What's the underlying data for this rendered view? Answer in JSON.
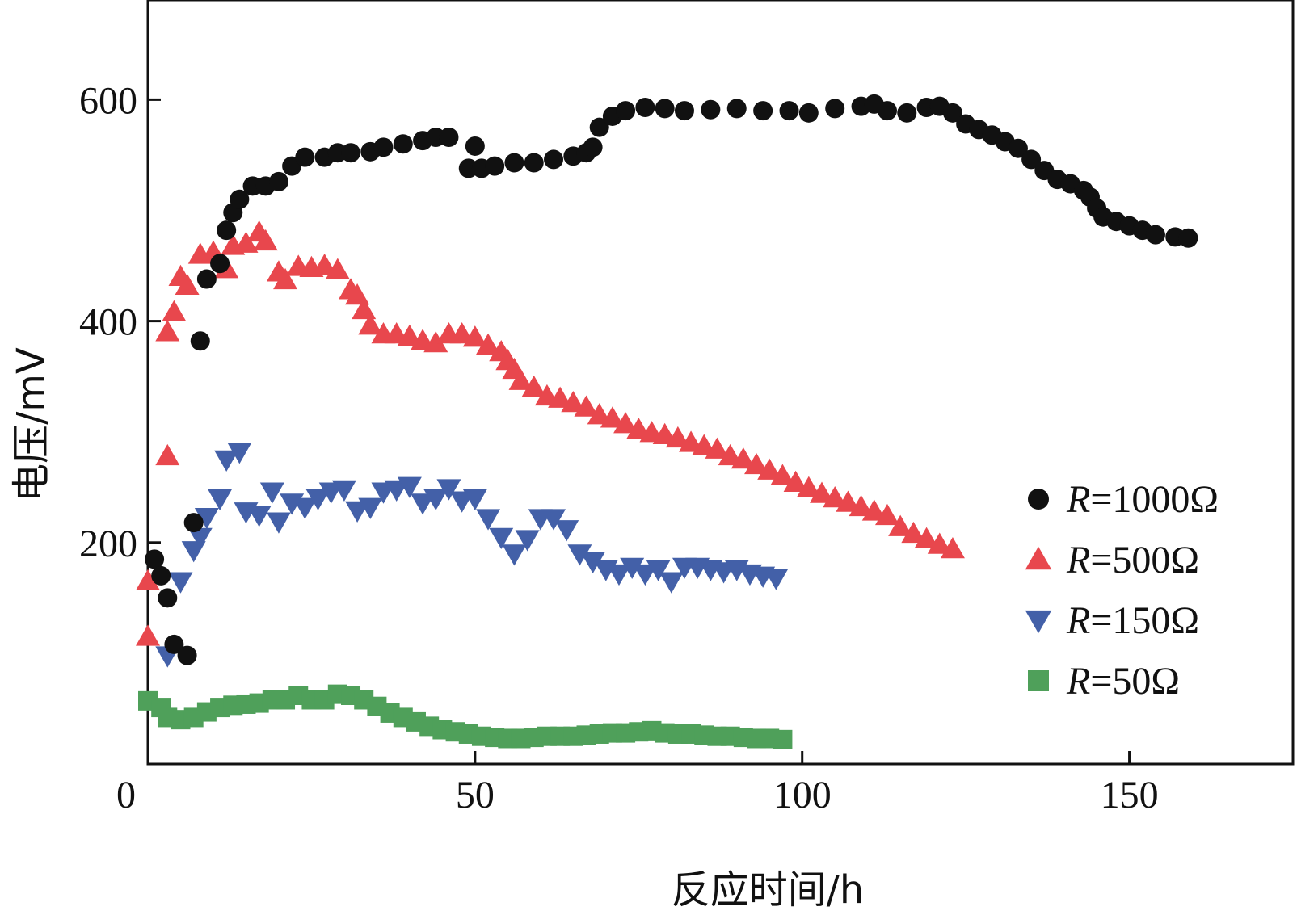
{
  "chart_data": {
    "type": "scatter",
    "xlabel": "反应时间/h",
    "ylabel": "电压/mV",
    "xlim": [
      0,
      175
    ],
    "ylim": [
      0,
      690
    ],
    "x_ticks": [
      0,
      50,
      100,
      150
    ],
    "y_ticks": [
      200,
      400,
      600
    ],
    "x_tick_labels": [
      "0",
      "50",
      "100",
      "150"
    ],
    "y_tick_labels": [
      "200",
      "400",
      "600"
    ],
    "legend_position": "right",
    "series": [
      {
        "name": "R=1000Ω",
        "legend_italic": "R",
        "legend_rest": "=1000Ω",
        "marker": "circle",
        "color": "#111111",
        "points": [
          [
            1,
            185
          ],
          [
            2,
            170
          ],
          [
            3,
            150
          ],
          [
            4,
            108
          ],
          [
            6,
            98
          ],
          [
            7,
            218
          ],
          [
            8,
            382
          ],
          [
            9,
            438
          ],
          [
            11,
            452
          ],
          [
            12,
            482
          ],
          [
            13,
            498
          ],
          [
            14,
            510
          ],
          [
            16,
            522
          ],
          [
            18,
            522
          ],
          [
            20,
            526
          ],
          [
            22,
            540
          ],
          [
            24,
            548
          ],
          [
            27,
            548
          ],
          [
            29,
            552
          ],
          [
            31,
            552
          ],
          [
            34,
            553
          ],
          [
            36,
            557
          ],
          [
            39,
            560
          ],
          [
            42,
            563
          ],
          [
            44,
            566
          ],
          [
            46,
            566
          ],
          [
            50,
            558
          ],
          [
            49,
            538
          ],
          [
            51,
            538
          ],
          [
            53,
            540
          ],
          [
            56,
            543
          ],
          [
            59,
            543
          ],
          [
            62,
            546
          ],
          [
            65,
            549
          ],
          [
            67,
            552
          ],
          [
            68,
            557
          ],
          [
            69,
            575
          ],
          [
            71,
            585
          ],
          [
            73,
            590
          ],
          [
            76,
            593
          ],
          [
            79,
            592
          ],
          [
            82,
            590
          ],
          [
            86,
            591
          ],
          [
            90,
            592
          ],
          [
            94,
            590
          ],
          [
            98,
            590
          ],
          [
            101,
            588
          ],
          [
            105,
            592
          ],
          [
            109,
            594
          ],
          [
            111,
            596
          ],
          [
            113,
            590
          ],
          [
            116,
            588
          ],
          [
            119,
            593
          ],
          [
            121,
            594
          ],
          [
            123,
            588
          ],
          [
            125,
            578
          ],
          [
            127,
            573
          ],
          [
            129,
            568
          ],
          [
            131,
            562
          ],
          [
            133,
            556
          ],
          [
            135,
            546
          ],
          [
            137,
            536
          ],
          [
            139,
            528
          ],
          [
            141,
            524
          ],
          [
            143,
            518
          ],
          [
            144,
            512
          ],
          [
            145,
            502
          ],
          [
            146,
            494
          ],
          [
            148,
            490
          ],
          [
            150,
            486
          ],
          [
            152,
            482
          ],
          [
            154,
            478
          ],
          [
            157,
            476
          ],
          [
            159,
            475
          ]
        ]
      },
      {
        "name": "R=500Ω",
        "legend_italic": "R",
        "legend_rest": "=500Ω",
        "marker": "triangle-up",
        "color": "#e8474d",
        "points": [
          [
            0,
            115
          ],
          [
            0,
            165
          ],
          [
            3,
            278
          ],
          [
            3,
            390
          ],
          [
            4,
            408
          ],
          [
            5,
            440
          ],
          [
            6,
            432
          ],
          [
            8,
            460
          ],
          [
            10,
            462
          ],
          [
            12,
            447
          ],
          [
            13,
            468
          ],
          [
            15,
            470
          ],
          [
            17,
            480
          ],
          [
            18,
            472
          ],
          [
            20,
            444
          ],
          [
            21,
            437
          ],
          [
            23,
            449
          ],
          [
            25,
            448
          ],
          [
            27,
            450
          ],
          [
            29,
            446
          ],
          [
            31,
            428
          ],
          [
            32,
            423
          ],
          [
            33,
            410
          ],
          [
            34,
            396
          ],
          [
            36,
            388
          ],
          [
            38,
            388
          ],
          [
            40,
            386
          ],
          [
            42,
            382
          ],
          [
            44,
            380
          ],
          [
            46,
            388
          ],
          [
            48,
            388
          ],
          [
            50,
            385
          ],
          [
            52,
            378
          ],
          [
            54,
            372
          ],
          [
            55,
            364
          ],
          [
            56,
            356
          ],
          [
            57,
            346
          ],
          [
            59,
            340
          ],
          [
            61,
            332
          ],
          [
            63,
            330
          ],
          [
            65,
            326
          ],
          [
            67,
            322
          ],
          [
            69,
            315
          ],
          [
            71,
            312
          ],
          [
            73,
            307
          ],
          [
            75,
            302
          ],
          [
            77,
            299
          ],
          [
            79,
            297
          ],
          [
            81,
            294
          ],
          [
            83,
            290
          ],
          [
            85,
            287
          ],
          [
            87,
            284
          ],
          [
            89,
            278
          ],
          [
            91,
            275
          ],
          [
            93,
            270
          ],
          [
            95,
            265
          ],
          [
            97,
            260
          ],
          [
            99,
            254
          ],
          [
            101,
            249
          ],
          [
            103,
            244
          ],
          [
            105,
            240
          ],
          [
            107,
            236
          ],
          [
            109,
            232
          ],
          [
            111,
            228
          ],
          [
            113,
            224
          ],
          [
            115,
            214
          ],
          [
            117,
            208
          ],
          [
            119,
            203
          ],
          [
            121,
            198
          ],
          [
            123,
            194
          ]
        ]
      },
      {
        "name": "R=150Ω",
        "legend_italic": "R",
        "legend_rest": "=150Ω",
        "marker": "triangle-down",
        "color": "#4360a8",
        "points": [
          [
            3,
            98
          ],
          [
            5,
            165
          ],
          [
            7,
            193
          ],
          [
            8,
            205
          ],
          [
            9,
            223
          ],
          [
            11,
            240
          ],
          [
            12,
            275
          ],
          [
            14,
            282
          ],
          [
            15,
            228
          ],
          [
            17,
            225
          ],
          [
            19,
            246
          ],
          [
            20,
            219
          ],
          [
            22,
            236
          ],
          [
            24,
            232
          ],
          [
            26,
            240
          ],
          [
            28,
            246
          ],
          [
            30,
            248
          ],
          [
            32,
            229
          ],
          [
            34,
            232
          ],
          [
            36,
            246
          ],
          [
            38,
            248
          ],
          [
            40,
            251
          ],
          [
            42,
            236
          ],
          [
            44,
            240
          ],
          [
            46,
            249
          ],
          [
            48,
            238
          ],
          [
            50,
            240
          ],
          [
            52,
            222
          ],
          [
            54,
            205
          ],
          [
            56,
            190
          ],
          [
            58,
            203
          ],
          [
            60,
            222
          ],
          [
            62,
            222
          ],
          [
            64,
            212
          ],
          [
            66,
            190
          ],
          [
            68,
            183
          ],
          [
            70,
            176
          ],
          [
            72,
            172
          ],
          [
            74,
            178
          ],
          [
            76,
            172
          ],
          [
            78,
            176
          ],
          [
            80,
            165
          ],
          [
            82,
            178
          ],
          [
            84,
            178
          ],
          [
            86,
            176
          ],
          [
            88,
            174
          ],
          [
            90,
            176
          ],
          [
            92,
            172
          ],
          [
            94,
            170
          ],
          [
            96,
            168
          ]
        ]
      },
      {
        "name": "R=50Ω",
        "legend_italic": "R",
        "legend_rest": "=50Ω",
        "marker": "square",
        "color": "#4fa05a",
        "points": [
          [
            0,
            57
          ],
          [
            2,
            51
          ],
          [
            3,
            42
          ],
          [
            5,
            40
          ],
          [
            7,
            42
          ],
          [
            9,
            47
          ],
          [
            11,
            51
          ],
          [
            13,
            53
          ],
          [
            15,
            54
          ],
          [
            17,
            55
          ],
          [
            19,
            58
          ],
          [
            21,
            58
          ],
          [
            23,
            62
          ],
          [
            25,
            58
          ],
          [
            27,
            58
          ],
          [
            29,
            63
          ],
          [
            31,
            62
          ],
          [
            33,
            58
          ],
          [
            35,
            52
          ],
          [
            37,
            46
          ],
          [
            39,
            42
          ],
          [
            41,
            38
          ],
          [
            43,
            34
          ],
          [
            45,
            31
          ],
          [
            47,
            29
          ],
          [
            49,
            27
          ],
          [
            51,
            25
          ],
          [
            53,
            24
          ],
          [
            55,
            23
          ],
          [
            57,
            23
          ],
          [
            59,
            24
          ],
          [
            61,
            25
          ],
          [
            63,
            25
          ],
          [
            65,
            25
          ],
          [
            67,
            26
          ],
          [
            69,
            27
          ],
          [
            71,
            28
          ],
          [
            73,
            28
          ],
          [
            75,
            29
          ],
          [
            77,
            30
          ],
          [
            79,
            28
          ],
          [
            81,
            27
          ],
          [
            83,
            27
          ],
          [
            85,
            26
          ],
          [
            87,
            25
          ],
          [
            89,
            25
          ],
          [
            91,
            24
          ],
          [
            93,
            23
          ],
          [
            95,
            23
          ],
          [
            97,
            22
          ]
        ]
      }
    ]
  }
}
